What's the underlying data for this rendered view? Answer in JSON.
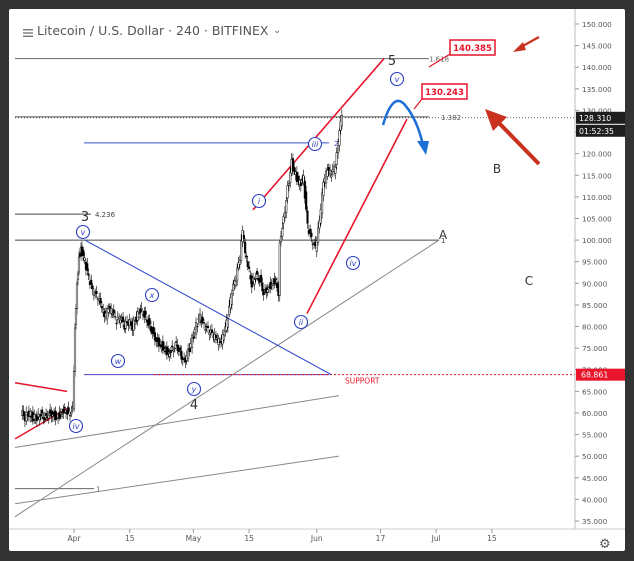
{
  "header": {
    "title": "Litecoin / U.S. Dollar · 240 · BITFINEX",
    "dropdown_icon": "chevron-down-icon"
  },
  "price_labels": {
    "current_price": "128.310",
    "countdown": "01:52:35",
    "support_price": "68.861"
  },
  "colors": {
    "background": "#ffffff",
    "candles": "#000000",
    "channel": "#e8152b",
    "wave_circle": "#2a3cc4",
    "support": "#e8152b",
    "trendline_blue": "#3a4fd0",
    "grey_lines": "#888888",
    "arrow_red": "#c8321e",
    "arrow_blue": "#1e6ed8"
  },
  "chart_data": {
    "type": "candlestick",
    "title": "Litecoin / U.S. Dollar · 240 · BITFINEX",
    "y_axis": {
      "position": "right",
      "ylim": [
        35,
        150
      ],
      "ticks": [
        35,
        40,
        45,
        50,
        55,
        60,
        65,
        70,
        75,
        80,
        85,
        90,
        95,
        100,
        105,
        110,
        115,
        120,
        125,
        130,
        135,
        140,
        145,
        150
      ],
      "tick_labels": [
        "35.000",
        "40.000",
        "45.000",
        "50.000",
        "55.000",
        "60.000",
        "65.000",
        "70.000",
        "75.000",
        "80.000",
        "85.000",
        "90.000",
        "95.000",
        "100.000",
        "105.000",
        "110.000",
        "115.000",
        "120.000",
        "125.000",
        "130.000",
        "135.000",
        "140.000",
        "145.000",
        "150.000"
      ]
    },
    "x_axis": {
      "tick_labels": [
        "Apr",
        "15",
        "May",
        "15",
        "Jun",
        "17",
        "Jul",
        "15"
      ],
      "tick_days": [
        0,
        14,
        30,
        44,
        61,
        77,
        91,
        105
      ]
    },
    "series_close": [
      [
        -13,
        60
      ],
      [
        -12,
        59
      ],
      [
        -11,
        60
      ],
      [
        -10,
        59
      ],
      [
        -9,
        59
      ],
      [
        -8,
        60
      ],
      [
        -7,
        59
      ],
      [
        -6,
        60
      ],
      [
        -5,
        60
      ],
      [
        -4,
        59
      ],
      [
        -3,
        60
      ],
      [
        -2,
        61
      ],
      [
        -1,
        60
      ],
      [
        0,
        61
      ],
      [
        0.5,
        80
      ],
      [
        1,
        90
      ],
      [
        1.5,
        96
      ],
      [
        2,
        98
      ],
      [
        3,
        95
      ],
      [
        4,
        91
      ],
      [
        5,
        88
      ],
      [
        6,
        87
      ],
      [
        7,
        85
      ],
      [
        8,
        82
      ],
      [
        9,
        84
      ],
      [
        10,
        83
      ],
      [
        11,
        81
      ],
      [
        12,
        82
      ],
      [
        13,
        80
      ],
      [
        14,
        81
      ],
      [
        15,
        80
      ],
      [
        16,
        82
      ],
      [
        17,
        84
      ],
      [
        18,
        83
      ],
      [
        19,
        81
      ],
      [
        20,
        79
      ],
      [
        21,
        77
      ],
      [
        22,
        76
      ],
      [
        23,
        75
      ],
      [
        24,
        74
      ],
      [
        25,
        75
      ],
      [
        26,
        76
      ],
      [
        27,
        74
      ],
      [
        28,
        72
      ],
      [
        29,
        74
      ],
      [
        30,
        77
      ],
      [
        31,
        80
      ],
      [
        32,
        82
      ],
      [
        33,
        80
      ],
      [
        34,
        79
      ],
      [
        35,
        78
      ],
      [
        36,
        77
      ],
      [
        37,
        76
      ],
      [
        38,
        78
      ],
      [
        39,
        82
      ],
      [
        40,
        88
      ],
      [
        41,
        91
      ],
      [
        42,
        96
      ],
      [
        42.7,
        102
      ],
      [
        43.3,
        97
      ],
      [
        44,
        94
      ],
      [
        45,
        90
      ],
      [
        46,
        92
      ],
      [
        47,
        91
      ],
      [
        48,
        88
      ],
      [
        49,
        89
      ],
      [
        50,
        90
      ],
      [
        51,
        91
      ],
      [
        51.7,
        88
      ],
      [
        52,
        100
      ],
      [
        53,
        105
      ],
      [
        54,
        112
      ],
      [
        55,
        118
      ],
      [
        56,
        115
      ],
      [
        57,
        113
      ],
      [
        58,
        114
      ],
      [
        59,
        103
      ],
      [
        60,
        100
      ],
      [
        61,
        98
      ],
      [
        62,
        104
      ],
      [
        63,
        113
      ],
      [
        64,
        116
      ],
      [
        65,
        115
      ],
      [
        66,
        117
      ],
      [
        66.7,
        122
      ],
      [
        67.3,
        127
      ],
      [
        67.7,
        128
      ]
    ],
    "levels": [
      {
        "label": "1.618",
        "value": 142
      },
      {
        "label": "2",
        "value": 122.5
      },
      {
        "label": "1.382",
        "value": 128.5
      },
      {
        "label": "4.236",
        "value": 106
      },
      {
        "label": "1",
        "value": 100
      },
      {
        "label": "SUPPORT",
        "value": 68.861
      },
      {
        "label": "1",
        "value": 42.5
      }
    ],
    "targets": [
      "140.385",
      "130.243"
    ],
    "wave_labels": {
      "counts": [
        "5",
        "3",
        "4"
      ],
      "roman": [
        "v",
        "iii",
        "i",
        "v",
        "x",
        "w",
        "y",
        "ii",
        "iv",
        "iv"
      ],
      "letters": [
        "A",
        "B",
        "C"
      ]
    }
  }
}
